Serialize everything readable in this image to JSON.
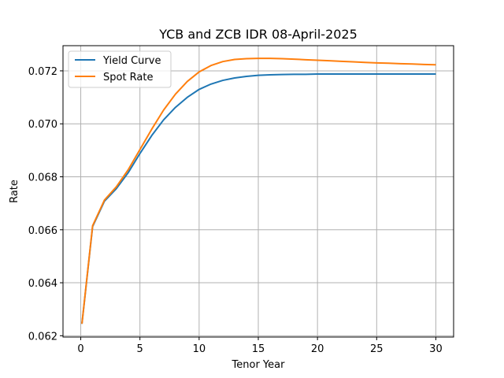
{
  "chart_data": {
    "type": "line",
    "title": "YCB and ZCB IDR 08-April-2025",
    "xlabel": "Tenor Year",
    "ylabel": "Rate",
    "xlim": [
      -1.5,
      31.5
    ],
    "ylim": [
      0.06195,
      0.07295
    ],
    "xticks": [
      0,
      5,
      10,
      15,
      20,
      25,
      30
    ],
    "yticks": [
      0.062,
      0.064,
      0.066,
      0.068,
      0.07,
      0.072
    ],
    "ytick_labels": [
      "0.062",
      "0.064",
      "0.066",
      "0.068",
      "0.070",
      "0.072"
    ],
    "grid": true,
    "legend_position": "top-left",
    "x": [
      0.1,
      1,
      2,
      3,
      4,
      5,
      6,
      7,
      8,
      9,
      10,
      11,
      12,
      13,
      14,
      15,
      16,
      17,
      18,
      19,
      20,
      21,
      22,
      23,
      24,
      25,
      26,
      27,
      28,
      29,
      30
    ],
    "series": [
      {
        "name": "Yield Curve",
        "color": "#1f77b4",
        "values": [
          0.06245,
          0.06612,
          0.06708,
          0.06755,
          0.06815,
          0.06888,
          0.06956,
          0.07015,
          0.07062,
          0.071,
          0.0713,
          0.0715,
          0.07164,
          0.07173,
          0.07179,
          0.07183,
          0.07185,
          0.07186,
          0.07187,
          0.07187,
          0.07188,
          0.07188,
          0.07188,
          0.07188,
          0.07188,
          0.07188,
          0.07188,
          0.07188,
          0.07188,
          0.07188,
          0.07188
        ]
      },
      {
        "name": "Spot Rate",
        "color": "#ff7f0e",
        "values": [
          0.06245,
          0.06615,
          0.06712,
          0.06762,
          0.06826,
          0.06903,
          0.0698,
          0.07052,
          0.07112,
          0.0716,
          0.07196,
          0.0722,
          0.07235,
          0.07243,
          0.07246,
          0.07247,
          0.07247,
          0.07246,
          0.07244,
          0.07242,
          0.0724,
          0.07238,
          0.07236,
          0.07234,
          0.07232,
          0.0723,
          0.07229,
          0.07227,
          0.07226,
          0.07224,
          0.07223
        ]
      }
    ]
  }
}
